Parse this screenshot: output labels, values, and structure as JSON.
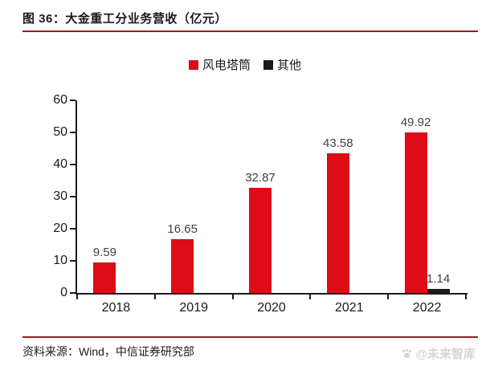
{
  "figure": {
    "title": "图 36：大金重工分业务营收（亿元）",
    "accent_color": "#9b1b1e"
  },
  "chart_data": {
    "type": "bar",
    "title": "大金重工分业务营收（亿元）",
    "categories": [
      "2018",
      "2019",
      "2020",
      "2021",
      "2022"
    ],
    "series": [
      {
        "name": "风电塔筒",
        "color": "#de0c16",
        "values": [
          9.59,
          16.65,
          32.87,
          43.58,
          49.92
        ]
      },
      {
        "name": "其他",
        "color": "#1a1a1a",
        "values": [
          null,
          null,
          null,
          null,
          1.14
        ]
      }
    ],
    "ylim": [
      0,
      60
    ],
    "yticks": [
      0,
      10,
      20,
      30,
      40,
      50,
      60
    ],
    "grid": false,
    "legend_position": "top",
    "bar_label_color": "#3f3f3f"
  },
  "footer": {
    "source": "资料来源：Wind，中信证券研究部",
    "watermark": "@未来智库"
  }
}
